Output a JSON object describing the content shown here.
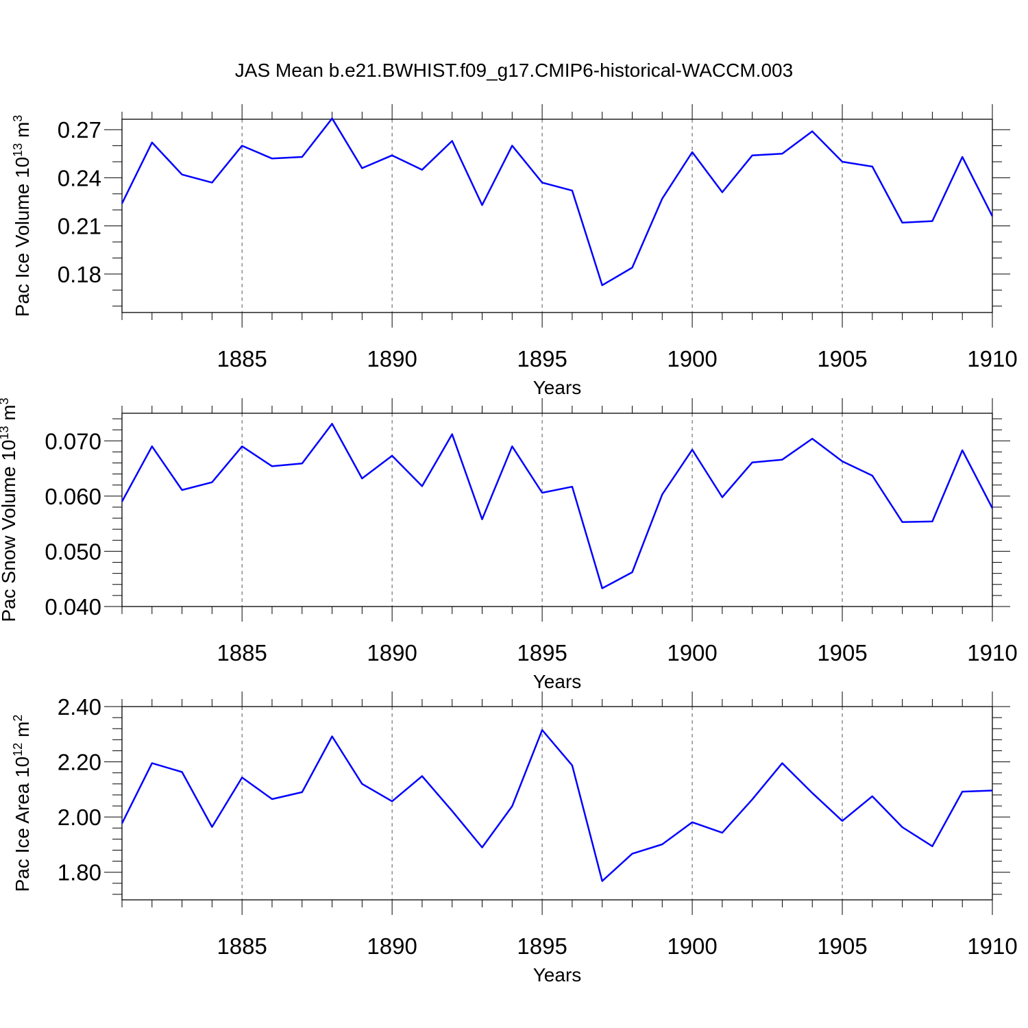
{
  "colors": {
    "series": "#0000ff",
    "axes": "#000000",
    "grid": "#555555",
    "background": "#ffffff"
  },
  "chart_data": [
    {
      "type": "line",
      "title": "JAS Mean b.e21.BWHIST.f09_g17.CMIP6-historical-WACCM.003",
      "xlabel": "Years",
      "ylabel": {
        "text": "Pac Ice Volume 10",
        "exponent": "13",
        "unit": " m",
        "unit_exponent": "3"
      },
      "x": [
        1881,
        1882,
        1883,
        1884,
        1885,
        1886,
        1887,
        1888,
        1889,
        1890,
        1891,
        1892,
        1893,
        1894,
        1895,
        1896,
        1897,
        1898,
        1899,
        1900,
        1901,
        1902,
        1903,
        1904,
        1905,
        1906,
        1907,
        1908,
        1909,
        1910
      ],
      "series": [
        {
          "name": "Pac Ice Volume",
          "values": [
            0.224,
            0.262,
            0.242,
            0.237,
            0.26,
            0.252,
            0.253,
            0.277,
            0.246,
            0.254,
            0.245,
            0.263,
            0.223,
            0.26,
            0.237,
            0.232,
            0.173,
            0.184,
            0.227,
            0.256,
            0.231,
            0.254,
            0.255,
            0.269,
            0.25,
            0.247,
            0.212,
            0.213,
            0.253,
            0.216
          ]
        }
      ],
      "xlim": [
        1881,
        1910
      ],
      "ylim": [
        0.156,
        0.2765
      ],
      "xticks": [
        1885,
        1890,
        1895,
        1900,
        1905,
        1910
      ],
      "xtick_labels": [
        "1885",
        "1890",
        "1895",
        "1900",
        "1905",
        "1910"
      ],
      "yticks": [
        0.18,
        0.21,
        0.24,
        0.27
      ],
      "ytick_labels": [
        "0.18",
        "0.21",
        "0.24",
        "0.27"
      ],
      "yminor_step": 0.01,
      "grid": "x-dashed"
    },
    {
      "type": "line",
      "xlabel": "Years",
      "ylabel": {
        "text": "Pac Snow Volume 10",
        "exponent": "13",
        "unit": " m",
        "unit_exponent": "3"
      },
      "x": [
        1881,
        1882,
        1883,
        1884,
        1885,
        1886,
        1887,
        1888,
        1889,
        1890,
        1891,
        1892,
        1893,
        1894,
        1895,
        1896,
        1897,
        1898,
        1899,
        1900,
        1901,
        1902,
        1903,
        1904,
        1905,
        1906,
        1907,
        1908,
        1909,
        1910
      ],
      "series": [
        {
          "name": "Pac Snow Volume",
          "values": [
            0.059,
            0.069,
            0.0611,
            0.0625,
            0.069,
            0.0654,
            0.0659,
            0.0731,
            0.0632,
            0.0673,
            0.0618,
            0.0712,
            0.0558,
            0.069,
            0.0606,
            0.0617,
            0.0433,
            0.0462,
            0.0603,
            0.0684,
            0.0598,
            0.0661,
            0.0666,
            0.0704,
            0.0663,
            0.0637,
            0.0553,
            0.0554,
            0.0683,
            0.0578
          ]
        }
      ],
      "xlim": [
        1881,
        1910
      ],
      "ylim": [
        0.04,
        0.075
      ],
      "xticks": [
        1885,
        1890,
        1895,
        1900,
        1905,
        1910
      ],
      "xtick_labels": [
        "1885",
        "1890",
        "1895",
        "1900",
        "1905",
        "1910"
      ],
      "yticks": [
        0.04,
        0.05,
        0.06,
        0.07
      ],
      "ytick_labels": [
        "0.040",
        "0.050",
        "0.060",
        "0.070"
      ],
      "yminor_step": 0.002,
      "grid": "x-dashed"
    },
    {
      "type": "line",
      "xlabel": "Years",
      "ylabel": {
        "text": "Pac Ice Area 10",
        "exponent": "12",
        "unit": " m",
        "unit_exponent": "2"
      },
      "x": [
        1881,
        1882,
        1883,
        1884,
        1885,
        1886,
        1887,
        1888,
        1889,
        1890,
        1891,
        1892,
        1893,
        1894,
        1895,
        1896,
        1897,
        1898,
        1899,
        1900,
        1901,
        1902,
        1903,
        1904,
        1905,
        1906,
        1907,
        1908,
        1909,
        1910
      ],
      "series": [
        {
          "name": "Pac Ice Area",
          "values": [
            1.977,
            2.195,
            2.163,
            1.964,
            2.143,
            2.065,
            2.09,
            2.292,
            2.12,
            2.057,
            2.148,
            2.022,
            1.89,
            2.039,
            2.315,
            2.187,
            1.768,
            1.867,
            1.901,
            1.981,
            1.943,
            2.064,
            2.195,
            2.087,
            1.986,
            2.075,
            1.963,
            1.894,
            2.092,
            2.096
          ]
        }
      ],
      "xlim": [
        1881,
        1910
      ],
      "ylim": [
        1.7,
        2.4
      ],
      "xticks": [
        1885,
        1890,
        1895,
        1900,
        1905,
        1910
      ],
      "xtick_labels": [
        "1885",
        "1890",
        "1895",
        "1900",
        "1905",
        "1910"
      ],
      "yticks": [
        1.8,
        2.0,
        2.2,
        2.4
      ],
      "ytick_labels": [
        "1.80",
        "2.00",
        "2.20",
        "2.40"
      ],
      "yminor_step": 0.04,
      "grid": "x-dashed"
    }
  ]
}
